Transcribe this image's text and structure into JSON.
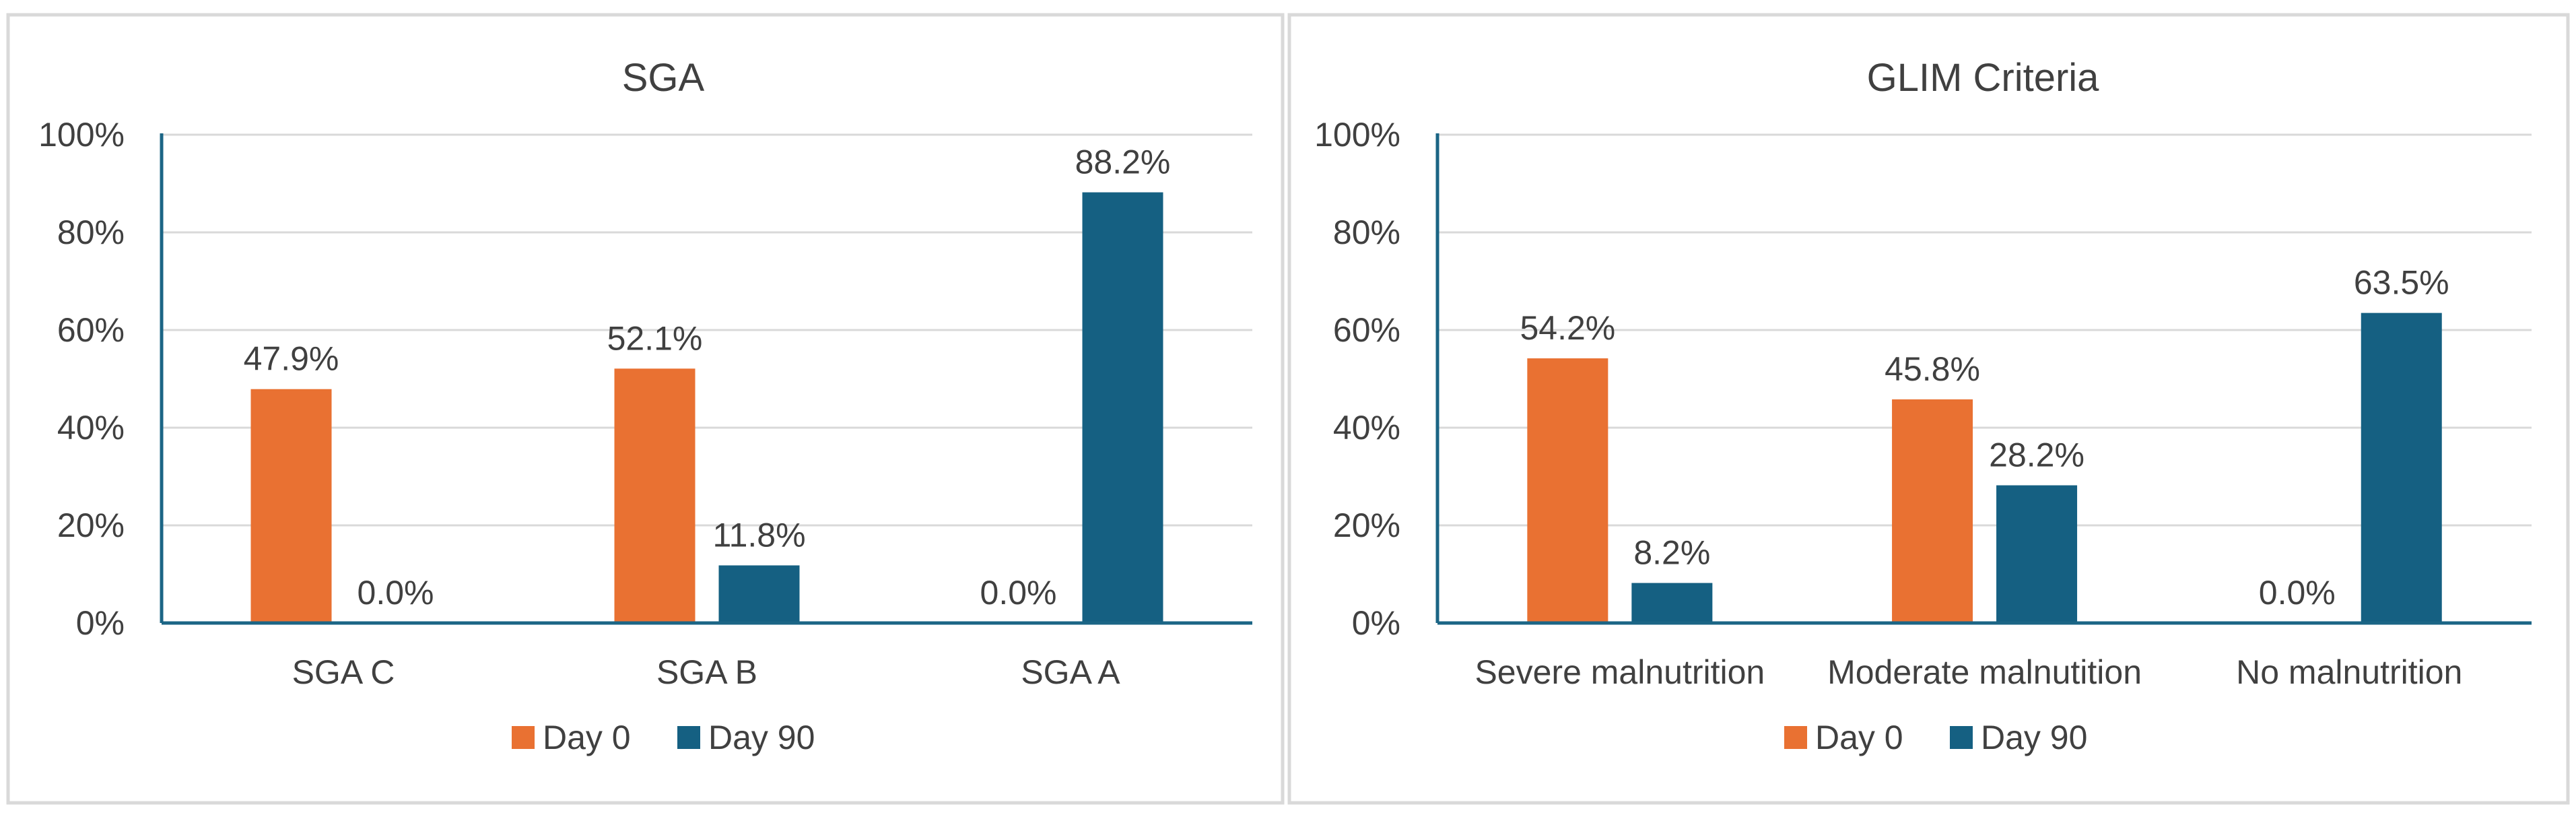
{
  "colors": {
    "series_day0": "#e97132",
    "series_day90": "#156082"
  },
  "chart_data": [
    {
      "type": "bar",
      "title": "SGA",
      "categories": [
        "SGA C",
        "SGA B",
        "SGA A"
      ],
      "series": [
        {
          "name": "Day 0",
          "values": [
            47.9,
            52.1,
            0.0
          ],
          "labels": [
            "47.9%",
            "52.1%",
            "0.0%"
          ]
        },
        {
          "name": "Day 90",
          "values": [
            0.0,
            11.8,
            88.2
          ],
          "labels": [
            "0.0%",
            "11.8%",
            "88.2%"
          ]
        }
      ],
      "ylim": [
        0,
        100
      ],
      "yticks": [
        0,
        20,
        40,
        60,
        80,
        100
      ],
      "ytick_labels": [
        "0%",
        "20%",
        "40%",
        "60%",
        "80%",
        "100%"
      ],
      "xlabel": "",
      "ylabel": "",
      "grid": true,
      "legend": "bottom"
    },
    {
      "type": "bar",
      "title": "GLIM  Criteria",
      "categories": [
        "Severe malnutrition",
        "Moderate malnutition",
        "No malnutrition"
      ],
      "series": [
        {
          "name": "Day 0",
          "values": [
            54.2,
            45.8,
            0.0
          ],
          "labels": [
            "54.2%",
            "45.8%",
            "0.0%"
          ]
        },
        {
          "name": "Day 90",
          "values": [
            8.2,
            28.2,
            63.5
          ],
          "labels": [
            "8.2%",
            "28.2%",
            "63.5%"
          ]
        }
      ],
      "ylim": [
        0,
        100
      ],
      "yticks": [
        0,
        20,
        40,
        60,
        80,
        100
      ],
      "ytick_labels": [
        "0%",
        "20%",
        "40%",
        "60%",
        "80%",
        "100%"
      ],
      "xlabel": "",
      "ylabel": "",
      "grid": true,
      "legend": "bottom"
    }
  ]
}
